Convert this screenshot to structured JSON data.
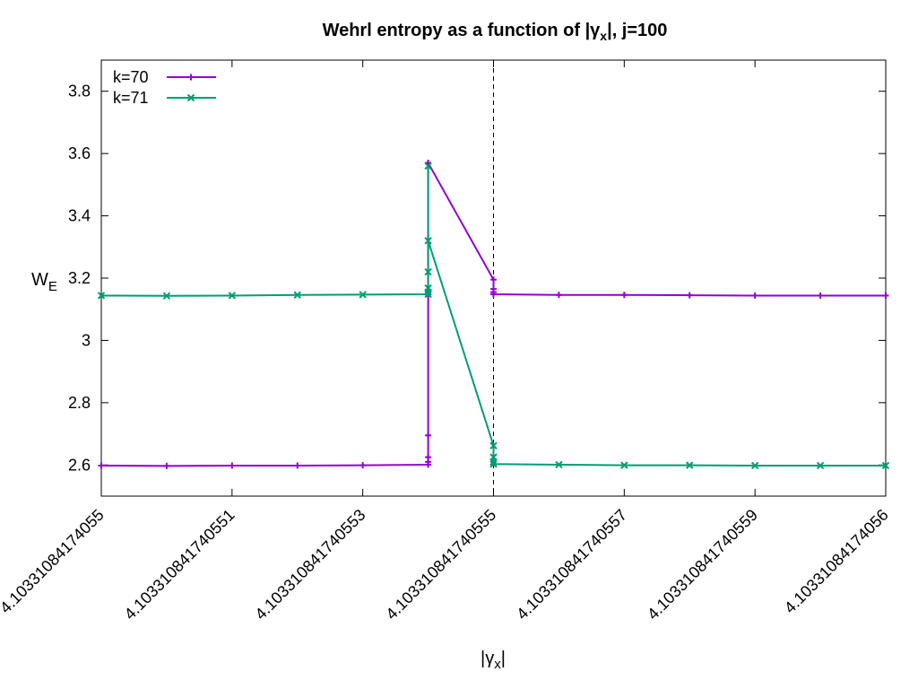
{
  "chart_data": {
    "type": "line",
    "title_main": "Wehrl entropy as a function of |γ",
    "title_sub": "x",
    "title_tail": "|,  j=100",
    "xlabel_main": "|γ",
    "xlabel_sub": "x",
    "xlabel_tail": "|",
    "ylabel_main": "W",
    "ylabel_sub": "E",
    "xlim": [
      0,
      12
    ],
    "ylim": [
      2.5,
      3.9
    ],
    "grid": false,
    "legend_placement": "top-left",
    "x_ticks": [
      {
        "value": 0,
        "label": "4.10331084174055"
      },
      {
        "value": 2,
        "label": "4.103310841740551"
      },
      {
        "value": 4,
        "label": "4.103310841740553"
      },
      {
        "value": 6,
        "label": "4.103310841740555"
      },
      {
        "value": 8,
        "label": "4.103310841740557"
      },
      {
        "value": 10,
        "label": "4.103310841740559"
      },
      {
        "value": 12,
        "label": "4.10331084174056"
      }
    ],
    "y_ticks": [
      {
        "value": 2.6,
        "label": "2.6"
      },
      {
        "value": 2.8,
        "label": "2.8"
      },
      {
        "value": 3.0,
        "label": "3"
      },
      {
        "value": 3.2,
        "label": "3.2"
      },
      {
        "value": 3.4,
        "label": "3.4"
      },
      {
        "value": 3.6,
        "label": "3.6"
      },
      {
        "value": 3.8,
        "label": "3.8"
      }
    ],
    "vline_x": 6,
    "series": [
      {
        "name": "k=70",
        "color": "#9400d3",
        "marker": "plus",
        "points": [
          [
            0,
            2.598
          ],
          [
            1,
            2.597
          ],
          [
            2,
            2.598
          ],
          [
            3,
            2.598
          ],
          [
            4,
            2.599
          ],
          [
            5,
            2.601
          ],
          [
            5,
            2.61
          ],
          [
            5,
            2.625
          ],
          [
            5,
            2.695
          ],
          [
            5,
            3.15
          ],
          [
            5,
            3.57
          ],
          [
            6,
            3.195
          ],
          [
            6,
            3.165
          ],
          [
            6,
            3.155
          ],
          [
            6,
            3.148
          ],
          [
            7,
            3.146
          ],
          [
            8,
            3.146
          ],
          [
            9,
            3.145
          ],
          [
            10,
            3.144
          ],
          [
            11,
            3.144
          ],
          [
            12,
            3.144
          ]
        ]
      },
      {
        "name": "k=71",
        "color": "#009e73",
        "marker": "cross",
        "points": [
          [
            0,
            3.144
          ],
          [
            1,
            3.143
          ],
          [
            2,
            3.144
          ],
          [
            3,
            3.146
          ],
          [
            4,
            3.147
          ],
          [
            5,
            3.148
          ],
          [
            5,
            3.155
          ],
          [
            5,
            3.168
          ],
          [
            5,
            3.22
          ],
          [
            5,
            3.56
          ],
          [
            5,
            3.32
          ],
          [
            6,
            2.662
          ],
          [
            6,
            2.625
          ],
          [
            6,
            2.61
          ],
          [
            6,
            2.603
          ],
          [
            7,
            2.601
          ],
          [
            8,
            2.599
          ],
          [
            9,
            2.599
          ],
          [
            10,
            2.598
          ],
          [
            11,
            2.598
          ],
          [
            12,
            2.598
          ]
        ]
      }
    ]
  }
}
